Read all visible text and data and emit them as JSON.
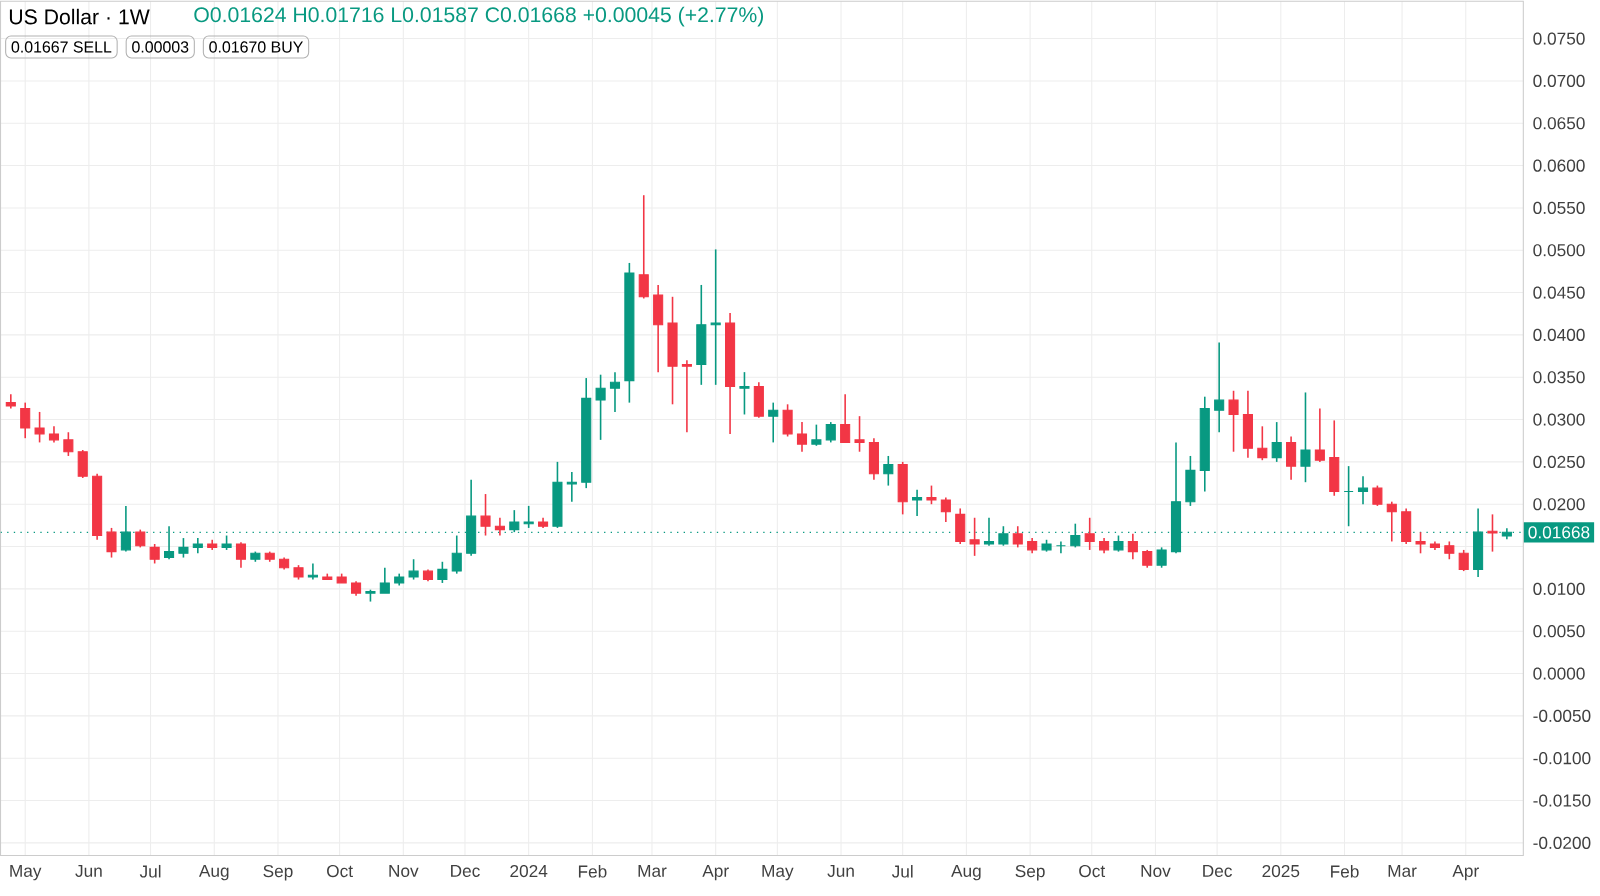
{
  "chart_data": {
    "type": "candlestick",
    "title": "US Dollar · 1W",
    "annotations": [
      "O0.01624 H0.01716 L0.01587 C0.01668 +0.00045 (+2.77%)",
      "0.01667 SELL",
      "0.00003",
      "0.01670 BUY"
    ],
    "colors": [
      "#f23645",
      "#f23645",
      "#f23645",
      "#f23645",
      "#f23645",
      "#f23645",
      "#f23645",
      "#f23645",
      "#089981",
      "#f23645",
      "#f23645",
      "#089981",
      "#089981",
      "#089981",
      "#f23645",
      "#089981",
      "#f23645",
      "#089981",
      "#f23645",
      "#f23645",
      "#f23645",
      "#089981",
      "#f23645",
      "#f23645",
      "#f23645",
      "#089981",
      "#089981",
      "#089981",
      "#089981",
      "#f23645",
      "#089981",
      "#089981",
      "#089981",
      "#f23645",
      "#f23645",
      "#089981",
      "#089981",
      "#f23645",
      "#089981",
      "#089981",
      "#089981",
      "#089981",
      "#089981",
      "#089981",
      "#f23645",
      "#f23645",
      "#f23645",
      "#f23645",
      "#089981",
      "#089981",
      "#f23645",
      "#089981",
      "#f23645",
      "#089981",
      "#f23645",
      "#f23645",
      "#089981",
      "#089981",
      "#f23645",
      "#f23645",
      "#f23645",
      "#089981",
      "#f23645",
      "#089981",
      "#f23645",
      "#f23645",
      "#f23645",
      "#f23645",
      "#089981",
      "#089981",
      "#f23645",
      "#f23645",
      "#089981",
      "#089981",
      "#089981",
      "#f23645",
      "#f23645",
      "#089981",
      "#f23645",
      "#f23645",
      "#089981",
      "#089981",
      "#089981",
      "#089981",
      "#089981",
      "#f23645",
      "#f23645",
      "#f23645",
      "#089981",
      "#f23645",
      "#089981",
      "#f23645",
      "#f23645",
      "#089981",
      "#089981",
      "#f23645",
      "#f23645",
      "#f23645",
      "#f23645",
      "#f23645",
      "#f23645",
      "#f23645",
      "#089981",
      "#f23645",
      "#089981"
    ],
    "grid": true,
    "xlim": [
      "2023-04-19",
      "2025-04-29"
    ],
    "ylim": [
      -0.0215,
      0.0794
    ],
    "xticks": [
      {
        "value": "2023-05-01",
        "label": "May"
      },
      {
        "value": "2023-06-01",
        "label": "Jun"
      },
      {
        "value": "2023-07-01",
        "label": "Jul"
      },
      {
        "value": "2023-08-01",
        "label": "Aug"
      },
      {
        "value": "2023-09-01",
        "label": "Sep"
      },
      {
        "value": "2023-10-01",
        "label": "Oct"
      },
      {
        "value": "2023-11-01",
        "label": "Nov"
      },
      {
        "value": "2023-12-01",
        "label": "Dec"
      },
      {
        "value": "2024-01-01",
        "label": "2024"
      },
      {
        "value": "2024-02-01",
        "label": "Feb"
      },
      {
        "value": "2024-03-01",
        "label": "Mar"
      },
      {
        "value": "2024-04-01",
        "label": "Apr"
      },
      {
        "value": "2024-05-01",
        "label": "May"
      },
      {
        "value": "2024-06-01",
        "label": "Jun"
      },
      {
        "value": "2024-07-01",
        "label": "Jul"
      },
      {
        "value": "2024-08-01",
        "label": "Aug"
      },
      {
        "value": "2024-09-01",
        "label": "Sep"
      },
      {
        "value": "2024-10-01",
        "label": "Oct"
      },
      {
        "value": "2024-11-01",
        "label": "Nov"
      },
      {
        "value": "2024-12-01",
        "label": "Dec"
      },
      {
        "value": "2025-01-01",
        "label": "2025"
      },
      {
        "value": "2025-02-01",
        "label": "Feb"
      },
      {
        "value": "2025-03-01",
        "label": "Mar"
      },
      {
        "value": "2025-04-01",
        "label": "Apr"
      }
    ],
    "yticks": [
      {
        "value": -0.02,
        "label": "-0.0200"
      },
      {
        "value": -0.015,
        "label": "-0.0150"
      },
      {
        "value": -0.01,
        "label": "-0.0100"
      },
      {
        "value": -0.005,
        "label": "-0.0050"
      },
      {
        "value": 0,
        "label": "0.0000"
      },
      {
        "value": 0.005,
        "label": "0.0050"
      },
      {
        "value": 0.01,
        "label": "0.0100"
      },
      {
        "value": 0.015,
        "label": null
      },
      {
        "value": 0.02,
        "label": "0.0200"
      },
      {
        "value": 0.025,
        "label": "0.0250"
      },
      {
        "value": 0.03,
        "label": "0.0300"
      },
      {
        "value": 0.035,
        "label": "0.0350"
      },
      {
        "value": 0.04,
        "label": "0.0400"
      },
      {
        "value": 0.045,
        "label": "0.0450"
      },
      {
        "value": 0.05,
        "label": "0.0500"
      },
      {
        "value": 0.055,
        "label": "0.0550"
      },
      {
        "value": 0.06,
        "label": "0.0600"
      },
      {
        "value": 0.065,
        "label": "0.0650"
      },
      {
        "value": 0.07,
        "label": "0.0700"
      },
      {
        "value": 0.075,
        "label": "0.0750"
      }
    ],
    "ref_lines": [
      {
        "axis": "y",
        "value": 0.01668,
        "label": "0.01668",
        "color": "#089981",
        "line_style": "dotted"
      }
    ],
    "x": [
      "2023-04-24",
      "2023-05-01",
      "2023-05-08",
      "2023-05-15",
      "2023-05-22",
      "2023-05-29",
      "2023-06-05",
      "2023-06-12",
      "2023-06-19",
      "2023-06-26",
      "2023-07-03",
      "2023-07-10",
      "2023-07-17",
      "2023-07-24",
      "2023-07-31",
      "2023-08-07",
      "2023-08-14",
      "2023-08-21",
      "2023-08-28",
      "2023-09-04",
      "2023-09-11",
      "2023-09-18",
      "2023-09-25",
      "2023-10-02",
      "2023-10-09",
      "2023-10-16",
      "2023-10-23",
      "2023-10-30",
      "2023-11-06",
      "2023-11-13",
      "2023-11-20",
      "2023-11-27",
      "2023-12-04",
      "2023-12-11",
      "2023-12-18",
      "2023-12-25",
      "2024-01-01",
      "2024-01-08",
      "2024-01-15",
      "2024-01-22",
      "2024-01-29",
      "2024-02-05",
      "2024-02-12",
      "2024-02-19",
      "2024-02-26",
      "2024-03-04",
      "2024-03-11",
      "2024-03-18",
      "2024-03-25",
      "2024-04-01",
      "2024-04-08",
      "2024-04-15",
      "2024-04-22",
      "2024-04-29",
      "2024-05-06",
      "2024-05-13",
      "2024-05-20",
      "2024-05-27",
      "2024-06-03",
      "2024-06-10",
      "2024-06-17",
      "2024-06-24",
      "2024-07-01",
      "2024-07-08",
      "2024-07-15",
      "2024-07-22",
      "2024-07-29",
      "2024-08-05",
      "2024-08-12",
      "2024-08-19",
      "2024-08-26",
      "2024-09-02",
      "2024-09-09",
      "2024-09-16",
      "2024-09-23",
      "2024-09-30",
      "2024-10-07",
      "2024-10-14",
      "2024-10-21",
      "2024-10-28",
      "2024-11-04",
      "2024-11-11",
      "2024-11-18",
      "2024-11-25",
      "2024-12-02",
      "2024-12-09",
      "2024-12-16",
      "2024-12-23",
      "2024-12-30",
      "2025-01-06",
      "2025-01-13",
      "2025-01-20",
      "2025-01-27",
      "2025-02-03",
      "2025-02-10",
      "2025-02-17",
      "2025-02-24",
      "2025-03-03",
      "2025-03-10",
      "2025-03-17",
      "2025-03-24",
      "2025-03-31",
      "2025-04-07",
      "2025-04-14",
      "2025-04-21"
    ],
    "ohlc": [
      [
        0.032,
        0.033,
        0.0313,
        0.0316
      ],
      [
        0.0313,
        0.032,
        0.0278,
        0.029
      ],
      [
        0.029,
        0.0309,
        0.0273,
        0.0283
      ],
      [
        0.0283,
        0.0292,
        0.0273,
        0.0276
      ],
      [
        0.0276,
        0.0285,
        0.0257,
        0.0262
      ],
      [
        0.0262,
        0.0264,
        0.0231,
        0.0233
      ],
      [
        0.0233,
        0.0236,
        0.0158,
        0.0163
      ],
      [
        0.0167,
        0.0172,
        0.0137,
        0.0144
      ],
      [
        0.0146,
        0.0198,
        0.0144,
        0.0167
      ],
      [
        0.0167,
        0.017,
        0.0149,
        0.0151
      ],
      [
        0.0149,
        0.0153,
        0.013,
        0.0135
      ],
      [
        0.0137,
        0.0174,
        0.0135,
        0.0144
      ],
      [
        0.0142,
        0.016,
        0.0137,
        0.0149
      ],
      [
        0.0149,
        0.016,
        0.0142,
        0.0153
      ],
      [
        0.0153,
        0.0158,
        0.0146,
        0.0149
      ],
      [
        0.0149,
        0.0163,
        0.0146,
        0.0153
      ],
      [
        0.0153,
        0.0155,
        0.0125,
        0.0135
      ],
      [
        0.0135,
        0.0144,
        0.0132,
        0.0142
      ],
      [
        0.0142,
        0.0144,
        0.0132,
        0.0135
      ],
      [
        0.0135,
        0.0137,
        0.0123,
        0.0125
      ],
      [
        0.0125,
        0.0128,
        0.0111,
        0.0114
      ],
      [
        0.0114,
        0.013,
        0.0111,
        0.0116
      ],
      [
        0.0114,
        0.0118,
        0.0111,
        0.0111
      ],
      [
        0.0114,
        0.0118,
        0.0107,
        0.0107
      ],
      [
        0.0107,
        0.0109,
        0.0092,
        0.0095
      ],
      [
        0.0095,
        0.0099,
        0.0085,
        0.0097
      ],
      [
        0.0095,
        0.0125,
        0.0095,
        0.0107
      ],
      [
        0.0107,
        0.0118,
        0.0104,
        0.0114
      ],
      [
        0.0114,
        0.0135,
        0.0111,
        0.0121
      ],
      [
        0.0121,
        0.0123,
        0.0109,
        0.0111
      ],
      [
        0.0111,
        0.0132,
        0.0107,
        0.0123
      ],
      [
        0.0121,
        0.0163,
        0.0118,
        0.0142
      ],
      [
        0.0142,
        0.0229,
        0.0139,
        0.0186
      ],
      [
        0.0186,
        0.0212,
        0.0163,
        0.0174
      ],
      [
        0.0174,
        0.0184,
        0.0163,
        0.017
      ],
      [
        0.017,
        0.0193,
        0.0167,
        0.0179
      ],
      [
        0.0177,
        0.0198,
        0.0172,
        0.0179
      ],
      [
        0.0179,
        0.0184,
        0.0172,
        0.0174
      ],
      [
        0.0174,
        0.025,
        0.0172,
        0.0226
      ],
      [
        0.0224,
        0.0238,
        0.0203,
        0.0226
      ],
      [
        0.0226,
        0.0349,
        0.0219,
        0.0325
      ],
      [
        0.0323,
        0.0353,
        0.0276,
        0.0337
      ],
      [
        0.0337,
        0.0356,
        0.0309,
        0.0344
      ],
      [
        0.0346,
        0.0485,
        0.032,
        0.0473
      ],
      [
        0.0471,
        0.0565,
        0.0443,
        0.0445
      ],
      [
        0.0447,
        0.0459,
        0.0356,
        0.0412
      ],
      [
        0.0414,
        0.0445,
        0.0318,
        0.0363
      ],
      [
        0.0365,
        0.037,
        0.0285,
        0.0363
      ],
      [
        0.0365,
        0.0459,
        0.0341,
        0.0412
      ],
      [
        0.0412,
        0.0501,
        0.0341,
        0.0414
      ],
      [
        0.0414,
        0.0426,
        0.0283,
        0.0339
      ],
      [
        0.0337,
        0.0356,
        0.0306,
        0.0339
      ],
      [
        0.0339,
        0.0344,
        0.0302,
        0.0304
      ],
      [
        0.0304,
        0.032,
        0.0273,
        0.0311
      ],
      [
        0.0311,
        0.0318,
        0.028,
        0.0283
      ],
      [
        0.0283,
        0.0297,
        0.0262,
        0.0271
      ],
      [
        0.0271,
        0.0294,
        0.0269,
        0.0276
      ],
      [
        0.0276,
        0.0297,
        0.0273,
        0.0294
      ],
      [
        0.0294,
        0.033,
        0.0273,
        0.0273
      ],
      [
        0.0276,
        0.0304,
        0.0262,
        0.0273
      ],
      [
        0.0273,
        0.0278,
        0.0229,
        0.0236
      ],
      [
        0.0236,
        0.0257,
        0.0222,
        0.0247
      ],
      [
        0.0247,
        0.025,
        0.0188,
        0.0203
      ],
      [
        0.0205,
        0.0217,
        0.0186,
        0.0208
      ],
      [
        0.0208,
        0.0222,
        0.02,
        0.0205
      ],
      [
        0.0205,
        0.0208,
        0.0179,
        0.0191
      ],
      [
        0.0188,
        0.0195,
        0.0153,
        0.0156
      ],
      [
        0.0158,
        0.0184,
        0.0139,
        0.0153
      ],
      [
        0.0153,
        0.0184,
        0.0151,
        0.0156
      ],
      [
        0.0153,
        0.0174,
        0.0151,
        0.0165
      ],
      [
        0.0165,
        0.0174,
        0.0149,
        0.0153
      ],
      [
        0.0156,
        0.016,
        0.0142,
        0.0146
      ],
      [
        0.0146,
        0.0158,
        0.0144,
        0.0153
      ],
      [
        0.0151,
        0.0156,
        0.0142,
        0.0151
      ],
      [
        0.0151,
        0.0177,
        0.0149,
        0.0163
      ],
      [
        0.0165,
        0.0184,
        0.0146,
        0.0156
      ],
      [
        0.0156,
        0.016,
        0.0142,
        0.0146
      ],
      [
        0.0146,
        0.0163,
        0.0144,
        0.0156
      ],
      [
        0.0156,
        0.0165,
        0.0135,
        0.0144
      ],
      [
        0.0144,
        0.0146,
        0.0125,
        0.0128
      ],
      [
        0.0128,
        0.0149,
        0.0125,
        0.0146
      ],
      [
        0.0144,
        0.0273,
        0.0142,
        0.0203
      ],
      [
        0.0203,
        0.0257,
        0.0198,
        0.024
      ],
      [
        0.024,
        0.0327,
        0.0215,
        0.0313
      ],
      [
        0.0311,
        0.0391,
        0.0285,
        0.0323
      ],
      [
        0.0323,
        0.0334,
        0.0262,
        0.0306
      ],
      [
        0.0306,
        0.0334,
        0.0255,
        0.0266
      ],
      [
        0.0266,
        0.0292,
        0.0252,
        0.0255
      ],
      [
        0.0255,
        0.0297,
        0.025,
        0.0273
      ],
      [
        0.0273,
        0.028,
        0.0229,
        0.0245
      ],
      [
        0.0245,
        0.0332,
        0.0226,
        0.0264
      ],
      [
        0.0264,
        0.0313,
        0.025,
        0.0252
      ],
      [
        0.0255,
        0.0299,
        0.021,
        0.0215
      ],
      [
        0.0215,
        0.0245,
        0.0174,
        0.0215
      ],
      [
        0.0215,
        0.0233,
        0.02,
        0.0219
      ],
      [
        0.0219,
        0.0222,
        0.0198,
        0.02
      ],
      [
        0.02,
        0.0203,
        0.0156,
        0.0191
      ],
      [
        0.0191,
        0.0195,
        0.0153,
        0.0156
      ],
      [
        0.0156,
        0.0167,
        0.0142,
        0.0153
      ],
      [
        0.0153,
        0.0156,
        0.0146,
        0.0149
      ],
      [
        0.0151,
        0.0156,
        0.0135,
        0.0142
      ],
      [
        0.0142,
        0.0146,
        0.0121,
        0.0123
      ],
      [
        0.0123,
        0.0195,
        0.0114,
        0.0167
      ],
      [
        0.0168,
        0.0188,
        0.0144,
        0.0166
      ],
      [
        0.01624,
        0.01716,
        0.01587,
        0.01668
      ]
    ]
  }
}
